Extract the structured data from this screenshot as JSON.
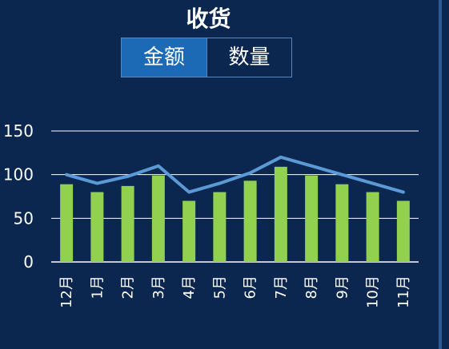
{
  "title": "收货",
  "toggle": {
    "active_label": "金额",
    "inactive_label": "数量"
  },
  "colors": {
    "background": "#0b2750",
    "bar": "#92d050",
    "line": "#5b9bd5",
    "grid": "#ffffff",
    "toggle_active": "#1c6ab5"
  },
  "chart_data": {
    "type": "bar",
    "categories": [
      "12月",
      "1月",
      "2月",
      "3月",
      "4月",
      "5月",
      "6月",
      "7月",
      "8月",
      "9月",
      "10月",
      "11月"
    ],
    "series": [
      {
        "type": "bar",
        "values": [
          89,
          80,
          87,
          99,
          70,
          80,
          93,
          109,
          99,
          89,
          80,
          70
        ]
      },
      {
        "type": "line",
        "values": [
          100,
          90,
          98,
          110,
          80,
          90,
          102,
          120,
          110,
          100,
          90,
          80
        ]
      }
    ],
    "yticks": [
      0,
      50,
      100,
      150
    ],
    "ylim": [
      0,
      150
    ],
    "grid": true,
    "legend": "none"
  }
}
